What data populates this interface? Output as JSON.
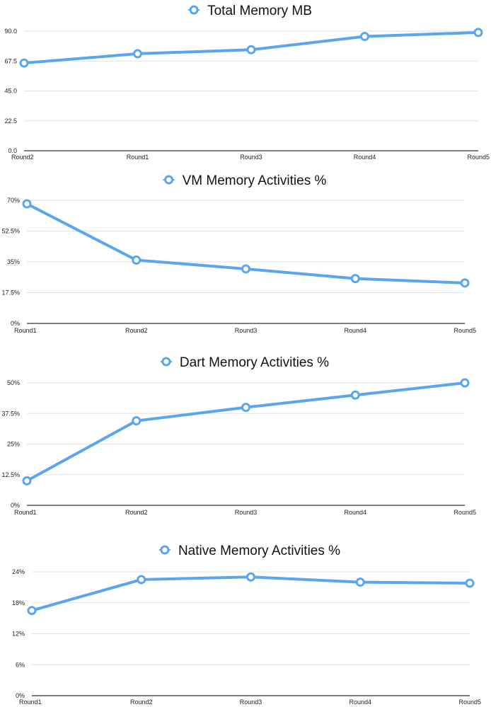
{
  "chart_data": [
    {
      "type": "line",
      "title": "Total Memory MB",
      "categories": [
        "Round2",
        "Round1",
        "Round3",
        "Round4",
        "Round5"
      ],
      "series": [
        {
          "name": "Total Memory MB",
          "values": [
            66,
            73,
            76,
            86,
            89
          ]
        }
      ],
      "ylim": [
        0,
        90
      ],
      "yticks": [
        "0.0",
        "22.5",
        "45.0",
        "67.5",
        "90.0"
      ],
      "grid": true,
      "legend": "top-center",
      "color": "#5aa6ee"
    },
    {
      "type": "line",
      "title": "VM Memory Activities %",
      "categories": [
        "Round1",
        "Round2",
        "Round3",
        "Round4",
        "Round5"
      ],
      "series": [
        {
          "name": "VM Memory Activities %",
          "values": [
            68,
            36,
            31,
            25.5,
            23
          ]
        }
      ],
      "ylim": [
        0,
        70
      ],
      "yticks": [
        "0%",
        "17.5%",
        "35%",
        "52.5%",
        "70%"
      ],
      "grid": true,
      "legend": "top-center",
      "color": "#5aa6ee"
    },
    {
      "type": "line",
      "title": "Dart Memory Activities %",
      "categories": [
        "Round1",
        "Round2",
        "Round3",
        "Round4",
        "Round5"
      ],
      "series": [
        {
          "name": "Dart Memory Activities %",
          "values": [
            10,
            34.5,
            40,
            45,
            50
          ]
        }
      ],
      "ylim": [
        0,
        50
      ],
      "yticks": [
        "0%",
        "12.5%",
        "25%",
        "37.5%",
        "50%"
      ],
      "grid": true,
      "legend": "top-center",
      "color": "#5aa6ee"
    },
    {
      "type": "line",
      "title": "Native Memory Activities %",
      "categories": [
        "Round1",
        "Round2",
        "Round3",
        "Round4",
        "Round5"
      ],
      "series": [
        {
          "name": "Native Memory Activities %",
          "values": [
            16.5,
            22.5,
            23,
            22,
            21.8
          ]
        }
      ],
      "ylim": [
        0,
        24
      ],
      "yticks": [
        "0%",
        "6%",
        "12%",
        "18%",
        "24%"
      ],
      "grid": true,
      "legend": "top-center",
      "color": "#5aa6ee"
    }
  ]
}
